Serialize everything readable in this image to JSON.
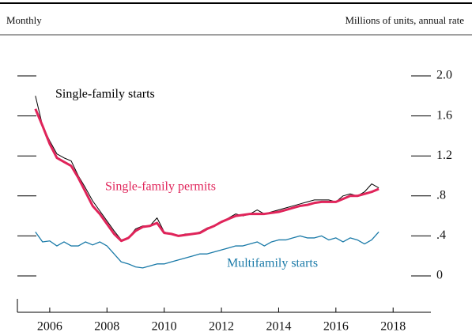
{
  "chart_data": {
    "type": "line",
    "frequency_label": "Monthly",
    "y_axis_label": "Millions of units, annual rate",
    "x": [
      2006.0,
      2006.25,
      2006.5,
      2006.75,
      2007.0,
      2007.25,
      2007.5,
      2007.75,
      2008.0,
      2008.25,
      2008.5,
      2008.75,
      2009.0,
      2009.25,
      2009.5,
      2009.75,
      2010.0,
      2010.25,
      2010.5,
      2010.75,
      2011.0,
      2011.25,
      2011.5,
      2011.75,
      2012.0,
      2012.25,
      2012.5,
      2012.75,
      2013.0,
      2013.25,
      2013.5,
      2013.75,
      2014.0,
      2014.25,
      2014.5,
      2014.75,
      2015.0,
      2015.25,
      2015.5,
      2015.75,
      2016.0,
      2016.25,
      2016.5,
      2016.75,
      2017.0,
      2017.25,
      2017.5,
      2017.75,
      2018.0
    ],
    "series": [
      {
        "name": "Single-family starts",
        "color": "#000000",
        "width": 1,
        "values": [
          1.8,
          1.5,
          1.35,
          1.22,
          1.18,
          1.15,
          1.0,
          0.88,
          0.75,
          0.65,
          0.55,
          0.45,
          0.36,
          0.38,
          0.47,
          0.5,
          0.5,
          0.58,
          0.44,
          0.42,
          0.4,
          0.42,
          0.42,
          0.44,
          0.48,
          0.5,
          0.54,
          0.58,
          0.62,
          0.6,
          0.62,
          0.66,
          0.62,
          0.64,
          0.66,
          0.68,
          0.7,
          0.72,
          0.74,
          0.76,
          0.76,
          0.76,
          0.74,
          0.8,
          0.82,
          0.8,
          0.84,
          0.92,
          0.88
        ]
      },
      {
        "name": "Single-family permits",
        "color": "#e0245a",
        "width": 3,
        "values": [
          1.67,
          1.5,
          1.32,
          1.18,
          1.14,
          1.1,
          0.98,
          0.84,
          0.7,
          0.62,
          0.52,
          0.42,
          0.35,
          0.38,
          0.45,
          0.49,
          0.5,
          0.53,
          0.43,
          0.42,
          0.4,
          0.41,
          0.42,
          0.43,
          0.47,
          0.5,
          0.54,
          0.57,
          0.6,
          0.61,
          0.62,
          0.62,
          0.62,
          0.63,
          0.64,
          0.66,
          0.68,
          0.7,
          0.71,
          0.73,
          0.74,
          0.74,
          0.74,
          0.77,
          0.8,
          0.8,
          0.82,
          0.84,
          0.87
        ]
      },
      {
        "name": "Multifamily starts",
        "color": "#1a7aa8",
        "width": 1.3,
        "values": [
          0.44,
          0.34,
          0.35,
          0.3,
          0.34,
          0.3,
          0.3,
          0.34,
          0.31,
          0.34,
          0.3,
          0.22,
          0.14,
          0.12,
          0.09,
          0.08,
          0.1,
          0.12,
          0.12,
          0.14,
          0.16,
          0.18,
          0.2,
          0.22,
          0.22,
          0.24,
          0.26,
          0.28,
          0.3,
          0.3,
          0.32,
          0.34,
          0.3,
          0.34,
          0.36,
          0.36,
          0.38,
          0.4,
          0.38,
          0.38,
          0.4,
          0.36,
          0.38,
          0.34,
          0.38,
          0.36,
          0.32,
          0.36,
          0.44
        ]
      }
    ],
    "xlim": [
      2005.37,
      2019.82
    ],
    "xticks": [
      {
        "value": 2006.5,
        "label": "2006"
      },
      {
        "value": 2008.5,
        "label": "2008"
      },
      {
        "value": 2010.5,
        "label": "2010"
      },
      {
        "value": 2012.5,
        "label": "2012"
      },
      {
        "value": 2014.5,
        "label": "2014"
      },
      {
        "value": 2016.5,
        "label": "2016"
      },
      {
        "value": 2018.5,
        "label": "2018"
      }
    ],
    "ylim": [
      0,
      2
    ],
    "yticks": [
      0,
      {
        "value": 0.4,
        "label": ".4"
      },
      {
        "value": 0.8,
        "label": ".8"
      },
      {
        "value": 1.2,
        "label": "1.2"
      },
      {
        "value": 1.6,
        "label": "1.6"
      },
      {
        "value": 2,
        "label": "2.0"
      }
    ]
  }
}
